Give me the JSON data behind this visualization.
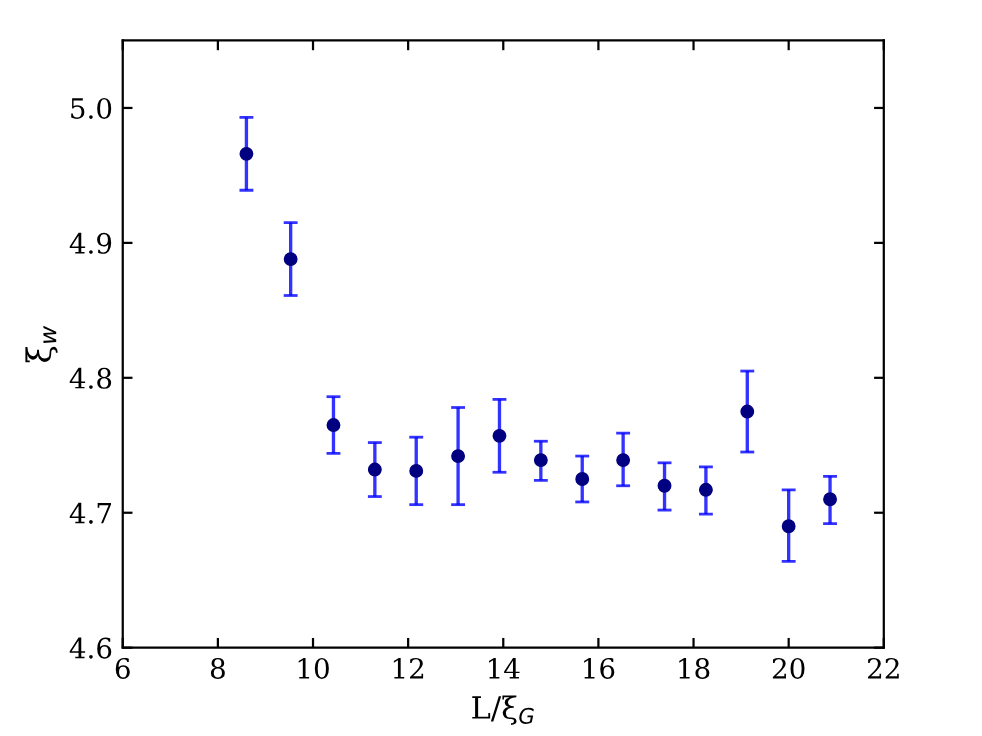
{
  "chart_data": {
    "type": "scatter",
    "xlabel": "L/ξ$_{G}$",
    "ylabel": "ξ$_{w}$",
    "x": [
      8.6,
      9.53,
      10.43,
      11.3,
      12.17,
      13.05,
      13.92,
      14.79,
      15.66,
      16.52,
      17.39,
      18.26,
      19.13,
      20.0,
      20.87
    ],
    "series": [
      {
        "color": "#000080",
        "values": [
          4.966,
          4.888,
          4.765,
          4.732,
          4.731,
          4.742,
          4.757,
          4.739,
          4.725,
          4.739,
          4.72,
          4.717,
          4.775,
          4.69,
          4.71
        ],
        "errors": [
          [
            4.939,
            4.993
          ],
          [
            4.861,
            4.915
          ],
          [
            4.744,
            4.786
          ],
          [
            4.712,
            4.752
          ],
          [
            4.706,
            4.756
          ],
          [
            4.706,
            4.778
          ],
          [
            4.73,
            4.784
          ],
          [
            4.724,
            4.753
          ],
          [
            4.708,
            4.742
          ],
          [
            4.72,
            4.759
          ],
          [
            4.702,
            4.737
          ],
          [
            4.699,
            4.734
          ],
          [
            4.745,
            4.805
          ],
          [
            4.664,
            4.717
          ],
          [
            4.692,
            4.727
          ]
        ]
      }
    ],
    "xlim": [
      6,
      22
    ],
    "xticks": [
      6,
      8,
      10,
      12,
      14,
      16,
      18,
      20,
      22
    ],
    "ylim": [
      4.6,
      5.05
    ],
    "yticks": [
      4.6,
      4.7,
      4.8,
      4.9,
      {
        "value": 5.0,
        "label": "5.0"
      }
    ],
    "marker": "circle",
    "grid": false,
    "legend": false
  }
}
